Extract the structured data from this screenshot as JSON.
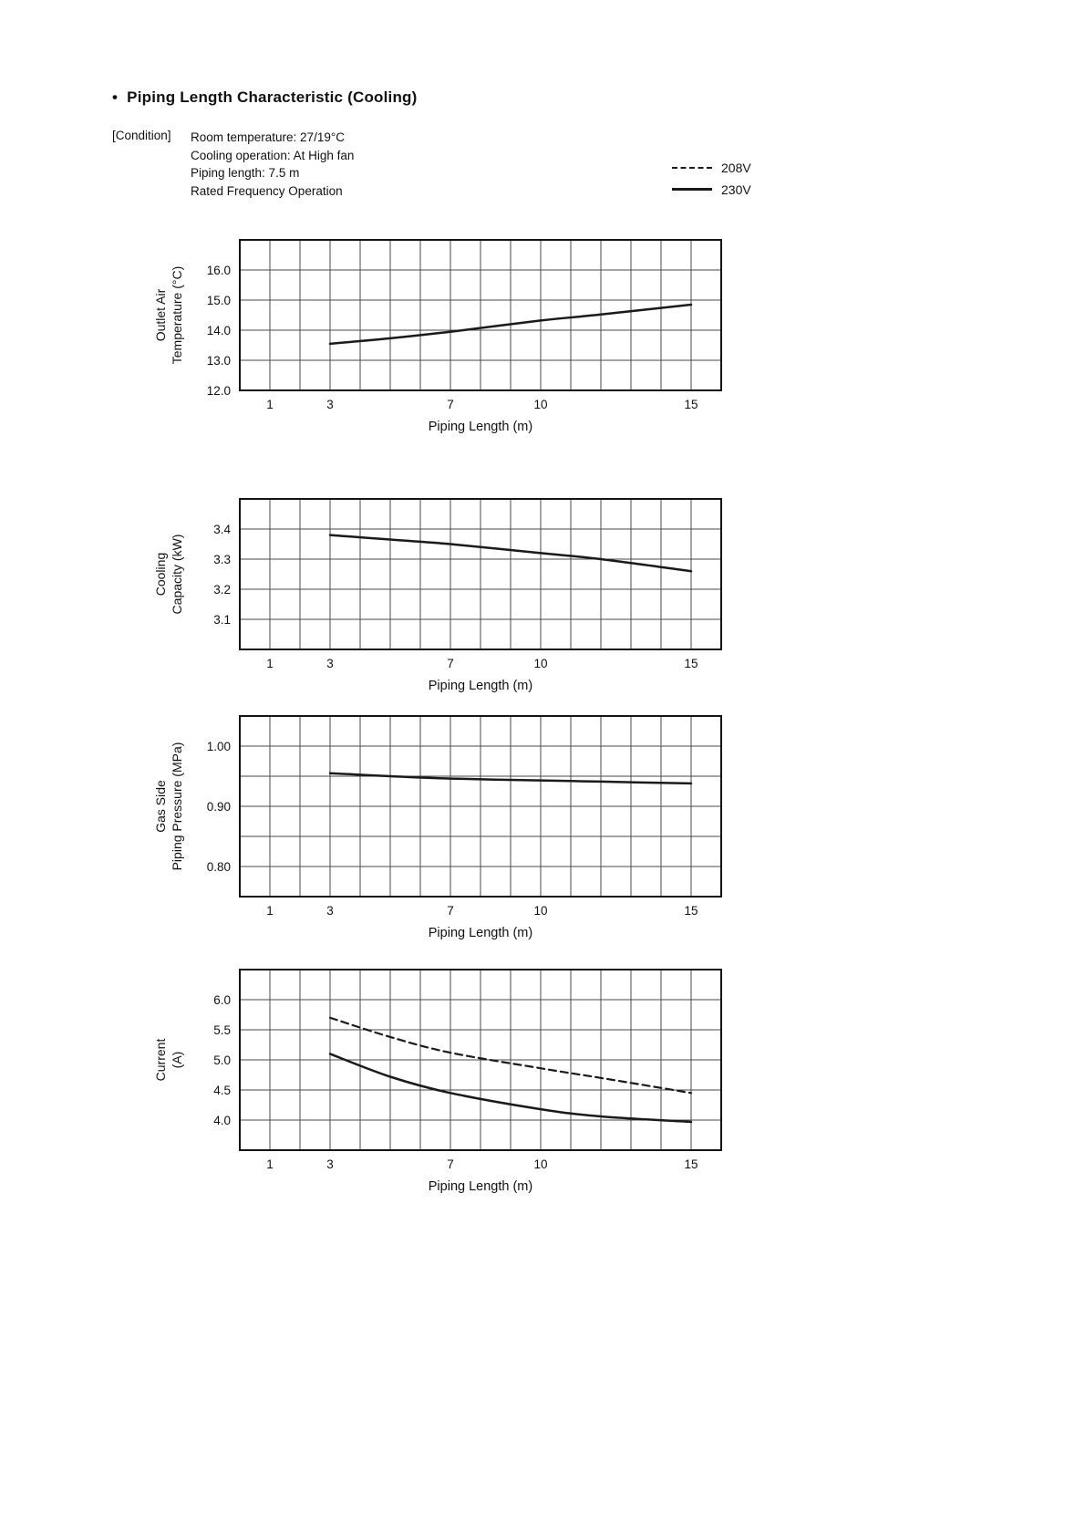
{
  "page": {
    "title": "Piping Length Characteristic (Cooling)",
    "condition_label": "[Condition]",
    "condition_lines": [
      "Room temperature: 27/19°C",
      "Cooling operation: At High fan",
      "Piping length:  7.5 m",
      "Rated Frequency Operation"
    ],
    "legend": [
      {
        "label": "208V",
        "style": "dashed"
      },
      {
        "label": "230V",
        "style": "solid"
      }
    ],
    "colors": {
      "line": "#1a1a1a",
      "grid": "#4a4a4a",
      "border": "#141414"
    }
  },
  "chart_data": [
    {
      "type": "line",
      "ylabel_lines": [
        "Outlet Air",
        "Temperature (°C)"
      ],
      "xlabel": "Piping Length (m)",
      "xlim": [
        0,
        16
      ],
      "x_grid_step": 1,
      "xticks": [
        {
          "value": 1,
          "label": "1"
        },
        {
          "value": 3,
          "label": "3"
        },
        {
          "value": 7,
          "label": "7"
        },
        {
          "value": 10,
          "label": "10"
        },
        {
          "value": 15,
          "label": "15"
        }
      ],
      "ylim": [
        12.0,
        17.0
      ],
      "y_grid_step": 1.0,
      "yticks": [
        {
          "value": 16.0,
          "label": "16.0"
        },
        {
          "value": 15.0,
          "label": "15.0"
        },
        {
          "value": 14.0,
          "label": "14.0"
        },
        {
          "value": 13.0,
          "label": "13.0"
        },
        {
          "value": 12.0,
          "label": "12.0"
        }
      ],
      "grid": true,
      "legend_position": "none",
      "series": [
        {
          "name": "230V",
          "style": "solid",
          "points": [
            [
              3,
              13.55
            ],
            [
              5,
              13.73
            ],
            [
              7,
              13.95
            ],
            [
              10,
              14.32
            ],
            [
              12,
              14.52
            ],
            [
              15,
              14.85
            ]
          ]
        }
      ]
    },
    {
      "type": "line",
      "ylabel_lines": [
        "Cooling",
        "Capacity (kW)"
      ],
      "xlabel": "Piping Length (m)",
      "xlim": [
        0,
        16
      ],
      "x_grid_step": 1,
      "xticks": [
        {
          "value": 1,
          "label": "1"
        },
        {
          "value": 3,
          "label": "3"
        },
        {
          "value": 7,
          "label": "7"
        },
        {
          "value": 10,
          "label": "10"
        },
        {
          "value": 15,
          "label": "15"
        }
      ],
      "ylim": [
        3.0,
        3.5
      ],
      "y_grid_step": 0.1,
      "yticks": [
        {
          "value": 3.4,
          "label": "3.4"
        },
        {
          "value": 3.3,
          "label": "3.3"
        },
        {
          "value": 3.2,
          "label": "3.2"
        },
        {
          "value": 3.1,
          "label": "3.1"
        }
      ],
      "grid": true,
      "legend_position": "none",
      "series": [
        {
          "name": "230V",
          "style": "solid",
          "points": [
            [
              3,
              3.38
            ],
            [
              5,
              3.365
            ],
            [
              7,
              3.35
            ],
            [
              10,
              3.32
            ],
            [
              12,
              3.3
            ],
            [
              15,
              3.26
            ]
          ]
        }
      ]
    },
    {
      "type": "line",
      "ylabel_lines": [
        "Gas Side",
        "Piping Pressure (MPa)"
      ],
      "xlabel": "Piping Length (m)",
      "xlim": [
        0,
        16
      ],
      "x_grid_step": 1,
      "xticks": [
        {
          "value": 1,
          "label": "1"
        },
        {
          "value": 3,
          "label": "3"
        },
        {
          "value": 7,
          "label": "7"
        },
        {
          "value": 10,
          "label": "10"
        },
        {
          "value": 15,
          "label": "15"
        }
      ],
      "ylim": [
        0.75,
        1.05
      ],
      "y_grid_step": 0.05,
      "yticks": [
        {
          "value": 1.0,
          "label": "1.00"
        },
        {
          "value": 0.9,
          "label": "0.90"
        },
        {
          "value": 0.8,
          "label": "0.80"
        }
      ],
      "grid": true,
      "legend_position": "none",
      "series": [
        {
          "name": "230V",
          "style": "solid",
          "points": [
            [
              3,
              0.955
            ],
            [
              5,
              0.95
            ],
            [
              7,
              0.946
            ],
            [
              10,
              0.943
            ],
            [
              12,
              0.941
            ],
            [
              15,
              0.938
            ]
          ]
        }
      ]
    },
    {
      "type": "line",
      "ylabel_lines": [
        "Current",
        "(A)"
      ],
      "xlabel": "Piping Length (m)",
      "xlim": [
        0,
        16
      ],
      "x_grid_step": 1,
      "xticks": [
        {
          "value": 1,
          "label": "1"
        },
        {
          "value": 3,
          "label": "3"
        },
        {
          "value": 7,
          "label": "7"
        },
        {
          "value": 10,
          "label": "10"
        },
        {
          "value": 15,
          "label": "15"
        }
      ],
      "ylim": [
        3.5,
        6.5
      ],
      "y_grid_step": 0.5,
      "yticks": [
        {
          "value": 6.0,
          "label": "6.0"
        },
        {
          "value": 5.5,
          "label": "5.5"
        },
        {
          "value": 5.0,
          "label": "5.0"
        },
        {
          "value": 4.5,
          "label": "4.5"
        },
        {
          "value": 4.0,
          "label": "4.0"
        }
      ],
      "grid": true,
      "legend_position": "none",
      "series": [
        {
          "name": "208V",
          "style": "dashed",
          "points": [
            [
              3,
              5.7
            ],
            [
              5,
              5.38
            ],
            [
              7,
              5.12
            ],
            [
              10,
              4.86
            ],
            [
              12,
              4.7
            ],
            [
              15,
              4.45
            ]
          ]
        },
        {
          "name": "230V",
          "style": "solid",
          "points": [
            [
              3,
              5.1
            ],
            [
              5,
              4.72
            ],
            [
              7,
              4.45
            ],
            [
              10,
              4.18
            ],
            [
              12,
              4.06
            ],
            [
              15,
              3.97
            ]
          ]
        }
      ]
    }
  ]
}
